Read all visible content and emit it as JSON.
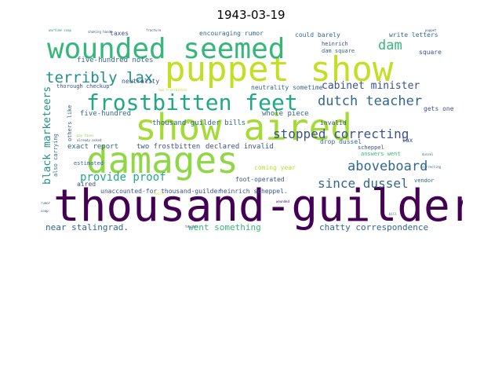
{
  "title": "1943-03-19",
  "palette": {
    "dark_purple": "#440154",
    "indigo": "#3b528b",
    "teal_blue": "#31688e",
    "teal": "#21918c",
    "green": "#35b779",
    "lime": "#8fd744",
    "yellow": "#d8e219",
    "bright_yellow": "#fde725"
  },
  "words": [
    "thousand-guilder",
    "damages",
    "show aired",
    "puppet show",
    "wounded seemed",
    "frostbitten feet",
    "terribly lax",
    "dutch teacher",
    "stopped correcting",
    "aboveboard",
    "since dussel",
    "provide proof",
    "dam",
    "black marketeers",
    "cabinet minister",
    "near stalingrad.",
    "went something",
    "chatty correspondence",
    "unaccounted-for thousand-guilder",
    "heinrich scheppel.",
    "coming year",
    "foot-operated",
    "declared invalid",
    "two frostbitten",
    "exact report",
    "thousand-guilder bills",
    "whole piece",
    "five-hundred",
    "five-hundred notes",
    "neutrality sometime",
    "neutrality",
    "thorough checkup",
    "encouraging rumor",
    "could barely",
    "write letters",
    "dam square",
    "taxes",
    "heinrich",
    "invalid",
    "gets one",
    "scheppel",
    "drop dussel",
    "answers went",
    "lax",
    "also carrying",
    "others like",
    "estimated",
    "aired",
    "vendor",
    "square",
    "wartime soap",
    "shaking hands",
    "two frostbitten",
    "puppet",
    "fracture",
    "already asked",
    "pay taxes",
    "bill",
    "wounded",
    "correcting",
    "heart",
    "dussel",
    "teacher",
    "rumor",
    "soap"
  ]
}
